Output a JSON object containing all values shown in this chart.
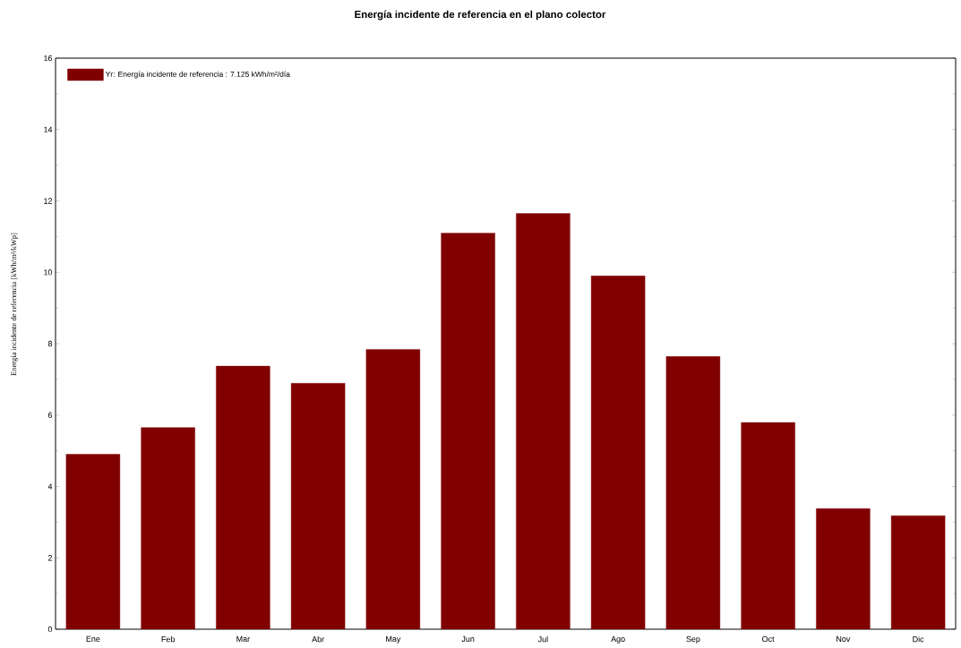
{
  "chart_data": {
    "type": "bar",
    "title": "Energía incidente de referencia en el plano colector",
    "ylabel": "Energía incidente de referencia [kWh/m²/kWp]",
    "categories": [
      "Ene",
      "Feb",
      "Mar",
      "Abr",
      "May",
      "Jun",
      "Jul",
      "Ago",
      "Sep",
      "Oct",
      "Nov",
      "Dic"
    ],
    "series": [
      {
        "name": "Yr: Energía incidente de referencia :  7.125 kWh/m²/día",
        "color": "#800000",
        "values": [
          4.9,
          5.65,
          7.37,
          6.89,
          7.84,
          11.1,
          11.65,
          9.9,
          7.64,
          5.79,
          3.38,
          3.18
        ]
      }
    ],
    "ylim": [
      0,
      16
    ],
    "yticks": [
      0,
      2,
      4,
      6,
      8,
      10,
      12,
      14,
      16
    ],
    "legend": "top left",
    "grid": false
  }
}
